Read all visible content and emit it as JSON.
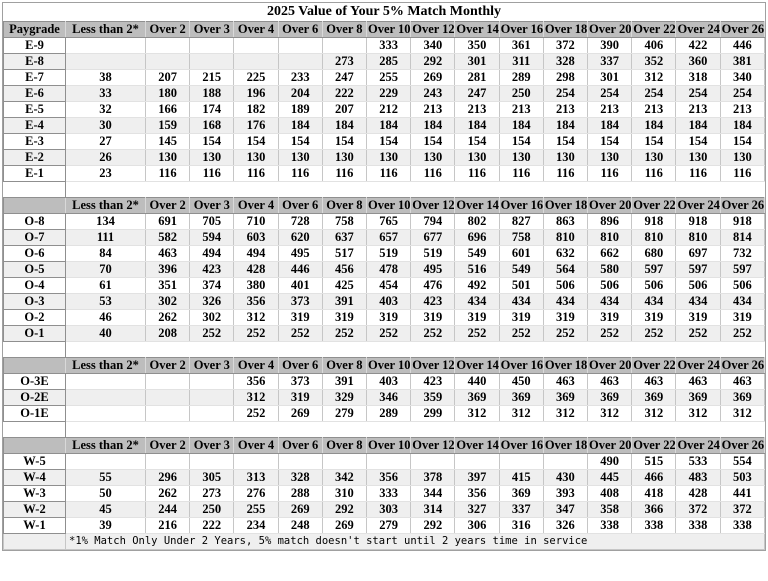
{
  "title": "2025 Value of Your 5% Match Monthly",
  "footnote": "*1% Match Only Under 2 Years, 5% match doesn't start until 2 years time in service",
  "colors": {
    "header_bg": "#bdbdbd",
    "stripe_bg": "#efefef",
    "grid_line": "#c6c6c6",
    "text": "#000000"
  },
  "columns": {
    "paygrade_header": "Paygrade",
    "service": [
      "Less than 2*",
      "Over 2",
      "Over 3",
      "Over 4",
      "Over 6",
      "Over 8",
      "Over 10",
      "Over 12",
      "Over 14",
      "Over 16",
      "Over 18",
      "Over 20",
      "Over 22",
      "Over 24",
      "Over 26"
    ]
  },
  "sections": [
    {
      "name": "enlisted",
      "first_header": "Paygrade",
      "rows": [
        {
          "paygrade": "E-9",
          "values": [
            "",
            "",
            "",
            "",
            "",
            "",
            "333",
            "340",
            "350",
            "361",
            "372",
            "390",
            "406",
            "422",
            "446"
          ]
        },
        {
          "paygrade": "E-8",
          "values": [
            "",
            "",
            "",
            "",
            "",
            "273",
            "285",
            "292",
            "301",
            "311",
            "328",
            "337",
            "352",
            "360",
            "381"
          ]
        },
        {
          "paygrade": "E-7",
          "values": [
            "38",
            "207",
            "215",
            "225",
            "233",
            "247",
            "255",
            "269",
            "281",
            "289",
            "298",
            "301",
            "312",
            "318",
            "340"
          ]
        },
        {
          "paygrade": "E-6",
          "values": [
            "33",
            "180",
            "188",
            "196",
            "204",
            "222",
            "229",
            "243",
            "247",
            "250",
            "254",
            "254",
            "254",
            "254",
            "254"
          ]
        },
        {
          "paygrade": "E-5",
          "values": [
            "32",
            "166",
            "174",
            "182",
            "189",
            "207",
            "212",
            "213",
            "213",
            "213",
            "213",
            "213",
            "213",
            "213",
            "213"
          ]
        },
        {
          "paygrade": "E-4",
          "values": [
            "30",
            "159",
            "168",
            "176",
            "184",
            "184",
            "184",
            "184",
            "184",
            "184",
            "184",
            "184",
            "184",
            "184",
            "184"
          ]
        },
        {
          "paygrade": "E-3",
          "values": [
            "27",
            "145",
            "154",
            "154",
            "154",
            "154",
            "154",
            "154",
            "154",
            "154",
            "154",
            "154",
            "154",
            "154",
            "154"
          ]
        },
        {
          "paygrade": "E-2",
          "values": [
            "26",
            "130",
            "130",
            "130",
            "130",
            "130",
            "130",
            "130",
            "130",
            "130",
            "130",
            "130",
            "130",
            "130",
            "130"
          ]
        },
        {
          "paygrade": "E-1",
          "values": [
            "23",
            "116",
            "116",
            "116",
            "116",
            "116",
            "116",
            "116",
            "116",
            "116",
            "116",
            "116",
            "116",
            "116",
            "116"
          ]
        }
      ]
    },
    {
      "name": "officer",
      "first_header": "",
      "rows": [
        {
          "paygrade": "O-8",
          "values": [
            "134",
            "691",
            "705",
            "710",
            "728",
            "758",
            "765",
            "794",
            "802",
            "827",
            "863",
            "896",
            "918",
            "918",
            "918"
          ]
        },
        {
          "paygrade": "O-7",
          "values": [
            "111",
            "582",
            "594",
            "603",
            "620",
            "637",
            "657",
            "677",
            "696",
            "758",
            "810",
            "810",
            "810",
            "810",
            "814"
          ]
        },
        {
          "paygrade": "O-6",
          "values": [
            "84",
            "463",
            "494",
            "494",
            "495",
            "517",
            "519",
            "519",
            "549",
            "601",
            "632",
            "662",
            "680",
            "697",
            "732"
          ]
        },
        {
          "paygrade": "O-5",
          "values": [
            "70",
            "396",
            "423",
            "428",
            "446",
            "456",
            "478",
            "495",
            "516",
            "549",
            "564",
            "580",
            "597",
            "597",
            "597"
          ]
        },
        {
          "paygrade": "O-4",
          "values": [
            "61",
            "351",
            "374",
            "380",
            "401",
            "425",
            "454",
            "476",
            "492",
            "501",
            "506",
            "506",
            "506",
            "506",
            "506"
          ]
        },
        {
          "paygrade": "O-3",
          "values": [
            "53",
            "302",
            "326",
            "356",
            "373",
            "391",
            "403",
            "423",
            "434",
            "434",
            "434",
            "434",
            "434",
            "434",
            "434"
          ]
        },
        {
          "paygrade": "O-2",
          "values": [
            "46",
            "262",
            "302",
            "312",
            "319",
            "319",
            "319",
            "319",
            "319",
            "319",
            "319",
            "319",
            "319",
            "319",
            "319"
          ]
        },
        {
          "paygrade": "O-1",
          "values": [
            "40",
            "208",
            "252",
            "252",
            "252",
            "252",
            "252",
            "252",
            "252",
            "252",
            "252",
            "252",
            "252",
            "252",
            "252"
          ]
        }
      ]
    },
    {
      "name": "officer-prior-enlisted",
      "first_header": "",
      "rows": [
        {
          "paygrade": "O-3E",
          "values": [
            "",
            "",
            "",
            "356",
            "373",
            "391",
            "403",
            "423",
            "440",
            "450",
            "463",
            "463",
            "463",
            "463",
            "463"
          ]
        },
        {
          "paygrade": "O-2E",
          "values": [
            "",
            "",
            "",
            "312",
            "319",
            "329",
            "346",
            "359",
            "369",
            "369",
            "369",
            "369",
            "369",
            "369",
            "369"
          ]
        },
        {
          "paygrade": "O-1E",
          "values": [
            "",
            "",
            "",
            "252",
            "269",
            "279",
            "289",
            "299",
            "312",
            "312",
            "312",
            "312",
            "312",
            "312",
            "312"
          ]
        }
      ]
    },
    {
      "name": "warrant",
      "first_header": "",
      "rows": [
        {
          "paygrade": "W-5",
          "values": [
            "",
            "",
            "",
            "",
            "",
            "",
            "",
            "",
            "",
            "",
            "",
            "490",
            "515",
            "533",
            "554"
          ]
        },
        {
          "paygrade": "W-4",
          "values": [
            "55",
            "296",
            "305",
            "313",
            "328",
            "342",
            "356",
            "378",
            "397",
            "415",
            "430",
            "445",
            "466",
            "483",
            "503"
          ]
        },
        {
          "paygrade": "W-3",
          "values": [
            "50",
            "262",
            "273",
            "276",
            "288",
            "310",
            "333",
            "344",
            "356",
            "369",
            "393",
            "408",
            "418",
            "428",
            "441"
          ]
        },
        {
          "paygrade": "W-2",
          "values": [
            "45",
            "244",
            "250",
            "255",
            "269",
            "292",
            "303",
            "314",
            "327",
            "337",
            "347",
            "358",
            "366",
            "372",
            "372"
          ]
        },
        {
          "paygrade": "W-1",
          "values": [
            "39",
            "216",
            "222",
            "234",
            "248",
            "269",
            "279",
            "292",
            "306",
            "316",
            "326",
            "338",
            "338",
            "338",
            "338"
          ]
        }
      ]
    }
  ]
}
